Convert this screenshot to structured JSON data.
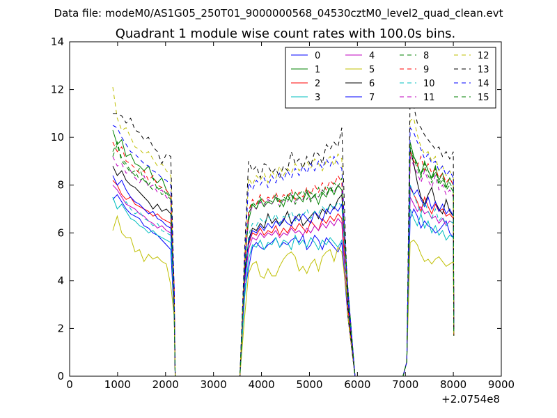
{
  "chart_data": {
    "type": "line",
    "suptitle": "Data file: modeM0/AS1G05_250T01_9000000568_04530cztM0_level2_quad_clean.evt",
    "title": "Quadrant 1 module wise count rates with 100.0s bins.",
    "xlabel": "",
    "ylabel": "",
    "x_offset_label": "+2.0754e8",
    "xlim": [
      0,
      9000
    ],
    "ylim": [
      0,
      14
    ],
    "xticks": [
      "0",
      "1000",
      "2000",
      "3000",
      "4000",
      "5000",
      "6000",
      "7000",
      "8000",
      "9000"
    ],
    "yticks": [
      "0",
      "2",
      "4",
      "6",
      "8",
      "10",
      "12",
      "14"
    ],
    "grid": false,
    "legend_position": "top-right",
    "series": [
      {
        "name": "0",
        "color": "#0000ff",
        "dash": "solid",
        "seg1": [
          7.4,
          7.6,
          7.3,
          7.0,
          6.8,
          6.7,
          6.6,
          6.3,
          6.2,
          6.0,
          5.9,
          5.7,
          5.5,
          5.3
        ],
        "seg2": [
          3.5,
          4.5,
          5.4,
          5.6,
          5.4,
          5.3,
          5.5,
          5.6,
          5.8,
          5.4,
          5.6,
          5.5,
          5.7,
          5.8,
          5.6,
          5.9,
          5.3,
          5.5,
          5.9,
          5.7,
          5.3,
          5.8,
          5.6,
          5.4,
          5.2,
          5.6
        ],
        "seg3": [
          6.6,
          7.0,
          6.7,
          6.2,
          6.5,
          6.3,
          6.2,
          6.0,
          6.1,
          6.3,
          6.5,
          6.0,
          5.8
        ]
      },
      {
        "name": "1",
        "color": "#008000",
        "dash": "solid",
        "seg1": [
          10.3,
          9.7,
          9.9,
          9.2,
          9.3,
          8.9,
          8.8,
          8.6,
          8.8,
          8.3,
          8.1,
          8.3,
          7.8,
          7.5
        ],
        "seg2": [
          4.8,
          6.5,
          7.2,
          7.0,
          7.4,
          7.1,
          7.3,
          7.2,
          7.5,
          7.4,
          7.1,
          7.6,
          7.3,
          7.7,
          7.5,
          7.3,
          7.8,
          7.4,
          7.6,
          7.2,
          7.7,
          7.5,
          7.9,
          7.6,
          8.0,
          7.8
        ],
        "seg3": [
          9.8,
          9.2,
          8.9,
          8.4,
          9.0,
          8.6,
          8.3,
          8.8,
          8.2,
          8.5,
          7.9,
          8.3,
          8.0
        ]
      },
      {
        "name": "2",
        "color": "#ff0000",
        "dash": "solid",
        "seg1": [
          8.2,
          8.0,
          7.6,
          7.4,
          7.5,
          7.2,
          7.1,
          7.0,
          6.9,
          6.7,
          6.8,
          6.6,
          6.5,
          6.4
        ],
        "seg2": [
          4.0,
          5.5,
          6.0,
          5.9,
          6.2,
          5.9,
          6.1,
          6.0,
          6.3,
          5.9,
          6.2,
          6.0,
          6.3,
          6.1,
          6.4,
          6.2,
          6.0,
          6.5,
          6.3,
          6.1,
          6.6,
          6.4,
          6.7,
          6.5,
          6.8,
          6.6
        ],
        "seg3": [
          7.9,
          7.6,
          7.3,
          6.9,
          7.5,
          7.1,
          6.8,
          7.2,
          6.9,
          7.0,
          6.7,
          6.8,
          6.6
        ]
      },
      {
        "name": "3",
        "color": "#00bfbf",
        "dash": "solid",
        "seg1": [
          7.5,
          7.0,
          7.2,
          6.9,
          6.6,
          6.5,
          6.3,
          6.2,
          6.0,
          6.1,
          5.9,
          5.8,
          5.7,
          5.6
        ],
        "seg2": [
          3.3,
          4.9,
          5.5,
          5.4,
          5.7,
          5.3,
          5.6,
          5.5,
          5.8,
          5.4,
          5.7,
          5.6,
          5.3,
          5.9,
          5.5,
          5.7,
          5.4,
          5.8,
          5.6,
          5.3,
          5.7,
          5.5,
          5.8,
          5.6,
          5.4,
          5.7
        ],
        "seg3": [
          7.0,
          6.6,
          6.3,
          6.8,
          6.2,
          6.5,
          6.0,
          6.3,
          5.9,
          6.1,
          5.7,
          5.9,
          5.8
        ]
      },
      {
        "name": "4",
        "color": "#bf00bf",
        "dash": "solid",
        "seg1": [
          8.0,
          7.8,
          7.5,
          7.2,
          7.1,
          7.0,
          6.8,
          6.7,
          6.5,
          6.4,
          6.2,
          6.3,
          6.1,
          6.0
        ],
        "seg2": [
          3.8,
          5.3,
          5.8,
          5.7,
          6.0,
          5.8,
          6.0,
          5.9,
          6.1,
          5.8,
          6.0,
          5.9,
          6.2,
          6.0,
          6.1,
          5.9,
          6.2,
          6.0,
          6.3,
          6.1,
          6.4,
          6.2,
          6.5,
          6.3,
          6.6,
          6.4
        ],
        "seg3": [
          7.5,
          7.2,
          6.9,
          7.1,
          6.8,
          6.9,
          6.6,
          6.7,
          6.4,
          6.6,
          6.3,
          6.5,
          6.4
        ]
      },
      {
        "name": "5",
        "color": "#bfbf00",
        "dash": "solid",
        "seg1": [
          6.1,
          6.7,
          6.0,
          5.8,
          5.8,
          5.2,
          5.3,
          4.8,
          5.1,
          4.9,
          5.0,
          4.8,
          4.7,
          3.8
        ],
        "seg2": [
          2.5,
          4.3,
          4.7,
          4.8,
          4.2,
          4.1,
          4.5,
          4.2,
          4.2,
          4.6,
          4.9,
          5.1,
          5.2,
          5.0,
          4.4,
          4.6,
          4.3,
          4.7,
          4.9,
          4.4,
          5.0,
          5.2,
          5.3,
          4.8,
          5.4,
          5.2
        ],
        "seg3": [
          5.6,
          5.7,
          5.5,
          5.1,
          4.8,
          4.9,
          4.7,
          4.9,
          5.0,
          4.8,
          4.6,
          4.7,
          4.8
        ]
      },
      {
        "name": "6",
        "color": "#000000",
        "dash": "solid",
        "seg1": [
          8.8,
          8.4,
          8.6,
          8.2,
          8.0,
          7.9,
          7.7,
          7.5,
          7.3,
          7.0,
          7.2,
          6.9,
          7.0,
          6.8
        ],
        "seg2": [
          4.3,
          5.7,
          6.2,
          6.1,
          6.4,
          6.2,
          6.8,
          6.4,
          6.6,
          6.3,
          6.5,
          6.9,
          6.4,
          6.6,
          6.8,
          6.3,
          6.5,
          6.7,
          6.9,
          6.6,
          7.0,
          6.8,
          7.2,
          7.0,
          7.4,
          7.6
        ],
        "seg3": [
          9.5,
          8.9,
          8.1,
          7.5,
          7.2,
          7.6,
          7.9,
          7.3,
          7.0,
          6.8,
          7.4,
          6.9,
          6.7
        ]
      },
      {
        "name": "7",
        "color": "#0000ff",
        "dash": "solid",
        "seg1": [
          8.4,
          8.0,
          8.2,
          7.8,
          7.5,
          7.3,
          7.2,
          7.0,
          6.8,
          6.9,
          6.6,
          6.5,
          6.3,
          6.2
        ],
        "seg2": [
          4.1,
          5.6,
          6.1,
          6.0,
          6.3,
          6.1,
          6.4,
          6.2,
          6.5,
          6.3,
          6.6,
          6.4,
          6.3,
          6.7,
          6.5,
          6.8,
          6.6,
          6.4,
          6.9,
          6.7,
          6.5,
          7.0,
          6.8,
          7.1,
          6.9,
          7.2
        ],
        "seg3": [
          8.0,
          7.6,
          7.8,
          7.4,
          7.1,
          7.5,
          7.0,
          7.3,
          6.9,
          7.2,
          6.8,
          7.0,
          6.7
        ]
      },
      {
        "name": "8",
        "color": "#008000",
        "dash": "dashed",
        "seg1": [
          9.4,
          9.8,
          9.1,
          8.9,
          8.6,
          8.4,
          8.7,
          8.2,
          8.0,
          8.3,
          7.8,
          7.9,
          7.6,
          7.4
        ],
        "seg2": [
          4.6,
          6.8,
          7.3,
          7.1,
          7.5,
          7.2,
          7.4,
          7.3,
          7.6,
          7.2,
          7.5,
          7.4,
          7.7,
          7.3,
          7.6,
          7.8,
          7.4,
          7.7,
          7.5,
          7.9,
          7.6,
          8.0,
          7.7,
          8.1,
          7.9,
          8.3
        ],
        "seg3": [
          9.5,
          9.1,
          8.7,
          8.3,
          8.8,
          8.4,
          8.1,
          8.6,
          8.0,
          8.2,
          7.8,
          8.0,
          7.7
        ]
      },
      {
        "name": "9",
        "color": "#ff0000",
        "dash": "dashed",
        "seg1": [
          9.8,
          9.4,
          9.6,
          9.0,
          8.9,
          8.7,
          8.5,
          8.6,
          8.2,
          8.4,
          8.0,
          7.9,
          7.8,
          7.5
        ],
        "seg2": [
          4.7,
          6.9,
          7.4,
          7.2,
          7.6,
          7.3,
          7.5,
          7.4,
          7.7,
          7.3,
          7.6,
          7.5,
          7.8,
          7.4,
          7.7,
          7.5,
          7.9,
          7.6,
          8.0,
          7.7,
          8.1,
          7.8,
          8.2,
          8.0,
          8.4,
          8.1
        ],
        "seg3": [
          9.4,
          9.0,
          8.8,
          9.2,
          8.6,
          8.9,
          8.5,
          8.7,
          8.3,
          8.5,
          8.1,
          8.3,
          8.0
        ]
      },
      {
        "name": "10",
        "color": "#00bfbf",
        "dash": "dashed",
        "seg1": [
          7.5,
          7.0,
          7.2,
          7.3,
          7.0,
          6.8,
          6.9,
          6.6,
          6.5,
          6.3,
          6.4,
          6.1,
          6.0,
          5.9
        ],
        "seg2": [
          3.4,
          5.9,
          6.4,
          6.3,
          6.6,
          6.4,
          6.7,
          6.5,
          6.8,
          6.4,
          6.7,
          6.6,
          6.9,
          6.5,
          6.8,
          6.7,
          7.0,
          6.6,
          6.9,
          6.8,
          7.1,
          6.9,
          7.2,
          7.0,
          7.3,
          7.1
        ],
        "seg3": [
          8.0,
          7.6,
          7.2,
          6.8,
          7.3,
          6.9,
          6.6,
          7.0,
          6.5,
          6.7,
          6.3,
          6.5,
          6.4
        ]
      },
      {
        "name": "11",
        "color": "#bf00bf",
        "dash": "dashed",
        "seg1": [
          9.2,
          8.8,
          8.9,
          8.5,
          8.6,
          8.3,
          8.1,
          8.4,
          7.9,
          8.0,
          7.7,
          7.8,
          7.5,
          7.3
        ],
        "seg2": [
          4.5,
          6.7,
          7.1,
          7.0,
          7.3,
          7.1,
          7.4,
          7.2,
          7.5,
          7.1,
          7.4,
          7.3,
          7.6,
          7.2,
          7.5,
          7.4,
          7.7,
          7.3,
          7.6,
          7.5,
          7.8,
          7.6,
          7.9,
          7.7,
          8.0,
          7.8
        ],
        "seg3": [
          9.2,
          8.8,
          8.5,
          8.1,
          8.6,
          8.2,
          7.9,
          8.4,
          7.8,
          8.0,
          7.6,
          7.8,
          7.5
        ]
      },
      {
        "name": "12",
        "color": "#bfbf00",
        "dash": "dashed",
        "seg1": [
          12.1,
          10.8,
          10.3,
          10.4,
          10.0,
          9.6,
          9.5,
          9.3,
          9.4,
          9.1,
          8.8,
          8.9,
          8.6,
          8.4
        ],
        "seg2": [
          5.0,
          8.3,
          8.0,
          8.4,
          8.2,
          8.5,
          8.1,
          8.6,
          8.3,
          8.8,
          8.4,
          8.7,
          8.5,
          8.9,
          8.6,
          8.8,
          9.0,
          8.7,
          9.1,
          8.9,
          8.6,
          9.0,
          9.2,
          8.8,
          9.3,
          9.1
        ],
        "seg3": [
          10.7,
          10.8,
          10.1,
          9.6,
          9.3,
          9.4,
          9.0,
          9.2,
          8.6,
          8.8,
          8.4,
          8.6,
          8.3
        ]
      },
      {
        "name": "13",
        "color": "#000000",
        "dash": "dashed",
        "seg1": [
          11.0,
          11.0,
          10.9,
          10.6,
          10.8,
          10.3,
          10.2,
          9.9,
          10.0,
          9.6,
          9.4,
          8.9,
          9.3,
          9.2
        ],
        "seg2": [
          5.3,
          9.0,
          8.6,
          8.8,
          8.3,
          8.9,
          8.8,
          8.5,
          8.7,
          8.3,
          8.8,
          8.6,
          9.4,
          8.9,
          9.1,
          8.7,
          9.2,
          8.8,
          9.4,
          9.3,
          8.9,
          9.7,
          9.5,
          9.8,
          9.6,
          10.4
        ],
        "seg3": [
          11.9,
          11.3,
          10.6,
          10.4,
          10.1,
          9.9,
          9.7,
          9.5,
          9.6,
          9.2,
          9.4,
          9.1,
          9.4
        ]
      },
      {
        "name": "14",
        "color": "#0000ff",
        "dash": "dashed",
        "seg1": [
          10.5,
          10.4,
          10.0,
          9.7,
          9.4,
          9.3,
          9.1,
          8.9,
          8.8,
          8.6,
          8.5,
          8.3,
          8.2,
          8.0
        ],
        "seg2": [
          4.9,
          8.1,
          7.8,
          8.2,
          8.0,
          8.3,
          7.9,
          8.4,
          8.1,
          8.5,
          8.2,
          8.6,
          8.3,
          8.7,
          8.4,
          8.8,
          8.5,
          8.9,
          8.6,
          9.0,
          8.7,
          9.1,
          8.8,
          9.2,
          8.9,
          8.7
        ],
        "seg3": [
          10.4,
          10.2,
          9.8,
          9.5,
          9.1,
          9.3,
          8.9,
          9.0,
          8.6,
          8.8,
          8.4,
          8.6,
          8.3
        ]
      },
      {
        "name": "15",
        "color": "#008000",
        "dash": "dashed",
        "seg1": [
          9.2,
          9.7,
          9.0,
          8.8,
          8.5,
          8.6,
          8.2,
          8.3,
          8.0,
          7.8,
          7.9,
          7.6,
          7.7,
          7.4
        ],
        "seg2": [
          4.4,
          6.8,
          7.2,
          7.0,
          7.4,
          7.1,
          7.3,
          7.2,
          7.5,
          7.1,
          7.4,
          7.3,
          7.6,
          7.2,
          7.5,
          7.4,
          7.7,
          7.3,
          7.6,
          7.5,
          7.8,
          7.6,
          7.9,
          7.7,
          8.0,
          7.8
        ],
        "seg3": [
          9.6,
          9.2,
          8.8,
          8.5,
          8.9,
          8.6,
          8.2,
          8.7,
          8.1,
          8.3,
          7.9,
          8.1,
          7.8
        ]
      }
    ]
  }
}
